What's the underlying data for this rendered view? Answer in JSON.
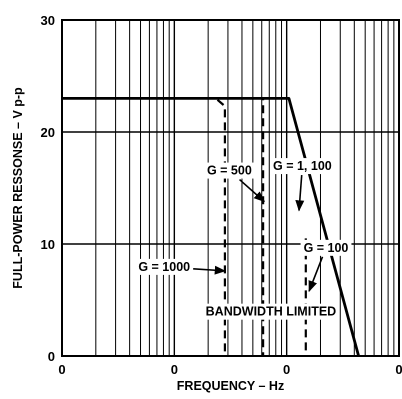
{
  "chart_data": {
    "type": "line",
    "xlabel": "FREQUENCY – Hz",
    "ylabel": "FULL-POWER RESSONSE – V p-p",
    "x_scale": "log",
    "x_tick_labels": [
      "0",
      "0",
      "0",
      "0"
    ],
    "y_ticks": [
      0,
      10,
      20,
      30
    ],
    "ylim": [
      0,
      30
    ],
    "grid": true,
    "series": [
      {
        "name": "G = 1, 100",
        "style": "solid",
        "points": [
          [
            0,
            23
          ],
          [
            2.02,
            23
          ],
          [
            2.64,
            0
          ]
        ]
      },
      {
        "name": "G = 500",
        "style": "dashed",
        "points": [
          [
            0,
            23
          ],
          [
            1.79,
            23
          ],
          [
            1.79,
            0
          ]
        ]
      },
      {
        "name": "G = 1000",
        "style": "dashed",
        "points": [
          [
            0,
            23
          ],
          [
            1.37,
            23
          ],
          [
            1.45,
            22.3
          ],
          [
            1.45,
            0
          ]
        ]
      },
      {
        "name": "G = 100",
        "style": "dashed",
        "points": [
          [
            2.17,
            10.5
          ],
          [
            2.17,
            0
          ]
        ]
      }
    ],
    "annotations": [
      {
        "text": "G = 500",
        "tx": 1.49,
        "ty": 16.2,
        "ax": 1.8,
        "ay": 13.8
      },
      {
        "text": "G = 1, 100",
        "tx": 2.14,
        "ty": 16.6,
        "ax": 2.11,
        "ay": 13.0
      },
      {
        "text": "G = 100",
        "tx": 2.35,
        "ty": 9.3,
        "ax": 2.2,
        "ay": 5.8
      },
      {
        "text": "G = 1000",
        "tx": 0.91,
        "ty": 7.6,
        "ax": 1.45,
        "ay": 7.6
      },
      {
        "text": "BANDWIDTH LIMITED",
        "tx": 1.86,
        "ty": 3.6
      }
    ]
  }
}
